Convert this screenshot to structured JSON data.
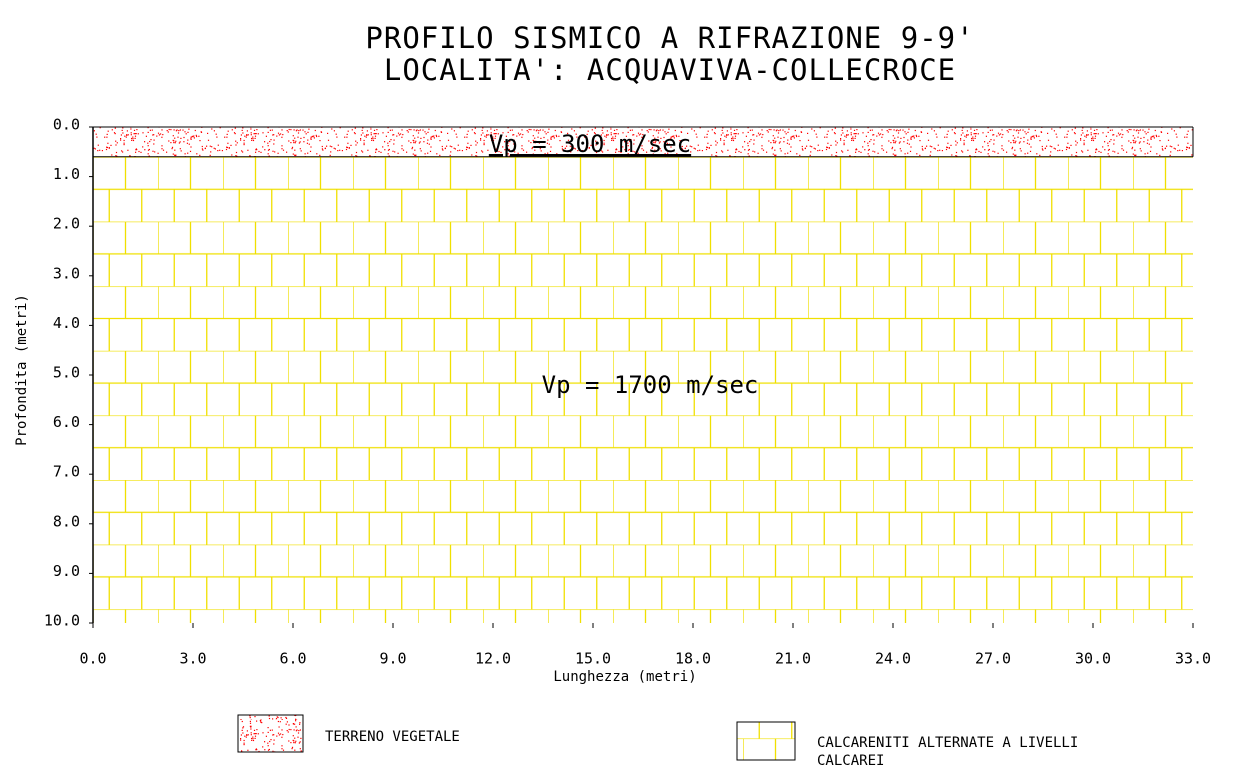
{
  "chart_data": {
    "type": "profile",
    "title": "PROFILO SISMICO A RIFRAZIONE 9-9'",
    "subtitle": "LOCALITA': ACQUAVIVA-COLLECROCE",
    "xlabel": "Lunghezza (metri)",
    "ylabel": "Profondita (metri)",
    "xlim": [
      0,
      33
    ],
    "ylim": [
      0,
      10
    ],
    "xticks": [
      {
        "value": 0,
        "label": "0.0"
      },
      {
        "value": 3,
        "label": "3.0"
      },
      {
        "value": 6,
        "label": "6.0"
      },
      {
        "value": 9,
        "label": "9.0"
      },
      {
        "value": 12,
        "label": "12.0"
      },
      {
        "value": 15,
        "label": "15.0"
      },
      {
        "value": 18,
        "label": "18.0"
      },
      {
        "value": 21,
        "label": "21.0"
      },
      {
        "value": 24,
        "label": "24.0"
      },
      {
        "value": 27,
        "label": "27.0"
      },
      {
        "value": 30,
        "label": "30.0"
      },
      {
        "value": 33,
        "label": "33.0"
      }
    ],
    "yticks": [
      {
        "value": 0,
        "label": "0.0"
      },
      {
        "value": 1,
        "label": "1.0"
      },
      {
        "value": 2,
        "label": "2.0"
      },
      {
        "value": 3,
        "label": "3.0"
      },
      {
        "value": 4,
        "label": "4.0"
      },
      {
        "value": 5,
        "label": "5.0"
      },
      {
        "value": 6,
        "label": "6.0"
      },
      {
        "value": 7,
        "label": "7.0"
      },
      {
        "value": 8,
        "label": "8.0"
      },
      {
        "value": 9,
        "label": "9.0"
      },
      {
        "value": 10,
        "label": "10.0"
      }
    ],
    "interface": {
      "x": [
        0,
        33
      ],
      "depth": [
        0.6,
        0.6
      ]
    },
    "layers": [
      {
        "label": "Vp = 300 m/sec",
        "legend": "TERRENO VEGETALE",
        "color": "#ff0000"
      },
      {
        "label": "Vp = 1700 m/sec",
        "legend": "CALCARENITI ALTERNATE A LIVELLI CALCAREI",
        "color": "#f0e000"
      }
    ]
  }
}
